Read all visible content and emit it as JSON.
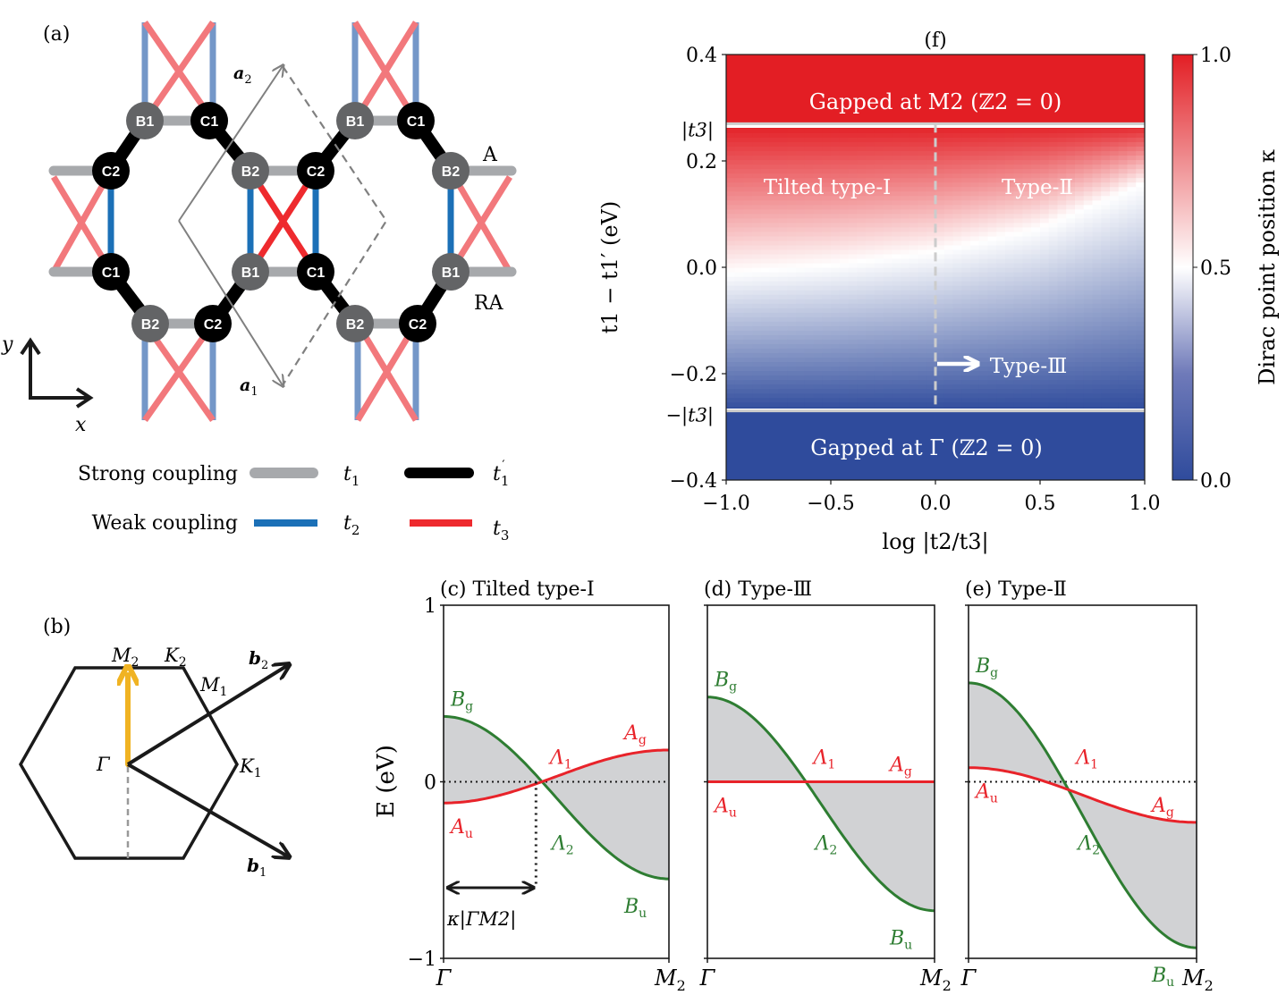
{
  "panel_a": {
    "label": "(a)",
    "nodes": [
      {
        "id": "B1",
        "type": "B"
      },
      {
        "id": "C1",
        "type": "C"
      },
      {
        "id": "C2",
        "type": "C"
      },
      {
        "id": "B2",
        "type": "B"
      }
    ],
    "edge_labels": {
      "A": "A",
      "RA": "RA"
    },
    "lattice_vectors": {
      "a1": "a",
      "a1_sub": "1",
      "a2": "a",
      "a2_sub": "2"
    },
    "axes": {
      "x": "x",
      "y": "y"
    },
    "legend": {
      "strong_label": "Strong coupling",
      "weak_label": "Weak coupling",
      "t1": "t",
      "t1_sub": "1",
      "t1p": "t",
      "t1p_sub": "1",
      "t1p_prime": "′",
      "t2": "t",
      "t2_sub": "2",
      "t3": "t",
      "t3_sub": "3"
    },
    "colors": {
      "t1": "#a7a9ac",
      "t1p": "#000000",
      "t2": "#1b70b7",
      "t3": "#ee2a2e",
      "t2_faded": "#7497c8",
      "t3_faded": "#f2787c",
      "node_B": "#636466",
      "node_C": "#000000"
    }
  },
  "panel_b": {
    "label": "(b)",
    "points": {
      "M2": "M",
      "M2_sub": "2",
      "K2": "K",
      "K2_sub": "2",
      "M1": "M",
      "M1_sub": "1",
      "K1": "K",
      "K1_sub": "1",
      "Gamma": "Γ"
    },
    "vectors": {
      "b1": "b",
      "b1_sub": "1",
      "b2": "b",
      "b2_sub": "2"
    },
    "colors": {
      "path": "#f0b323",
      "hex": "#1a1a1a"
    }
  },
  "chart_data": [
    {
      "id": "f",
      "type": "heatmap",
      "title": "(f)",
      "xlabel": "log |t2/t3|",
      "ylabel": "t1 − t1′ (eV)",
      "xlim": [
        -1.0,
        1.0
      ],
      "ylim": [
        -0.4,
        0.4
      ],
      "xticks": [
        "−1.0",
        "−0.5",
        "0.0",
        "0.5",
        "1.0"
      ],
      "xtick_values": [
        -1.0,
        -0.5,
        0.0,
        0.5,
        1.0
      ],
      "yticks": [
        "0.4",
        "0.2",
        "0.0",
        "−0.2",
        "−0.4"
      ],
      "ytick_values": [
        0.4,
        0.2,
        0.0,
        -0.2,
        -0.4
      ],
      "special_yticks": [
        {
          "label": "|t3|",
          "value": 0.27
        },
        {
          "label": "−|t3|",
          "value": -0.27
        }
      ],
      "t3_boundary": 0.27,
      "colorbar": {
        "label": "Dirac point position κ",
        "range": [
          0.0,
          1.0
        ],
        "ticks": [
          "1.0",
          "0.5",
          "0.0"
        ],
        "tick_values": [
          1.0,
          0.5,
          0.0
        ],
        "colormap": "bwr",
        "low": "#2f4b9c",
        "mid": "#ffffff",
        "high": "#e31e24"
      },
      "white_contour_kappa_0_5": {
        "x": [
          -1.0,
          -0.5,
          0.0,
          0.5,
          1.0
        ],
        "y": [
          -0.01,
          0.005,
          0.03,
          0.075,
          0.16
        ]
      },
      "annotations": [
        {
          "text": "Gapped at M2 (ℤ2 = 0)",
          "region": "top"
        },
        {
          "text": "Tilted type-I",
          "region": "upper-left"
        },
        {
          "text": "Type-Ⅱ",
          "region": "upper-right"
        },
        {
          "text": "Type-Ⅲ",
          "region": "x=0 line (arrow)"
        },
        {
          "text": "Gapped at Γ (ℤ2 = 0)",
          "region": "bottom"
        }
      ],
      "type3_line_x": 0.0,
      "grid": false
    },
    {
      "id": "c",
      "type": "line",
      "title": "(c)  Tilted type-I",
      "ylabel": "E (eV)",
      "ylim": [
        -1,
        1
      ],
      "yticks": [
        "1",
        "0",
        "−1"
      ],
      "ytick_values": [
        1,
        0,
        -1
      ],
      "xticks": [
        "Γ",
        "M2"
      ],
      "x_range": [
        0,
        1
      ],
      "series": [
        {
          "name": "green band (Bg → Λ2 → Bu)",
          "color": "#2e7d32",
          "start": 0.37,
          "end": -0.55,
          "shape": "cos"
        },
        {
          "name": "red band (Au → Λ1 → Ag)",
          "color": "#e8232a",
          "start": -0.12,
          "end": 0.18,
          "shape": "cos"
        }
      ],
      "labels": {
        "Bg": "B",
        "Bg_sub": "g",
        "Bu": "B",
        "Bu_sub": "u",
        "Ag": "A",
        "Ag_sub": "g",
        "Au": "A",
        "Au_sub": "u",
        "L1": "Λ",
        "L1_sub": "1",
        "L2": "Λ",
        "L2_sub": "2"
      },
      "kappa": 0.41,
      "kappa_label": "κ|ΓM2|",
      "fill_color": "#d1d2d4"
    },
    {
      "id": "d",
      "type": "line",
      "title": "(d)  Type-Ⅲ",
      "ylim": [
        -1,
        1
      ],
      "xticks": [
        "Γ",
        "M2"
      ],
      "x_range": [
        0,
        1
      ],
      "series": [
        {
          "name": "green band (Bg → Λ2 → Bu)",
          "color": "#2e7d32",
          "start": 0.48,
          "end": -0.73,
          "shape": "cos"
        },
        {
          "name": "red band (Au → Λ1 → Ag)",
          "color": "#e8232a",
          "start": 0.0,
          "end": 0.0,
          "shape": "flat"
        }
      ],
      "labels": {
        "Bg": "B",
        "Bg_sub": "g",
        "Bu": "B",
        "Bu_sub": "u",
        "Ag": "A",
        "Ag_sub": "g",
        "Au": "A",
        "Au_sub": "u",
        "L1": "Λ",
        "L1_sub": "1",
        "L2": "Λ",
        "L2_sub": "2"
      },
      "fill_color": "#d1d2d4"
    },
    {
      "id": "e",
      "type": "line",
      "title": "(e)  Type-Ⅱ",
      "ylim": [
        -1,
        1
      ],
      "xticks": [
        "Γ",
        "M2"
      ],
      "x_range": [
        0,
        1
      ],
      "series": [
        {
          "name": "green band (Bg → Λ2 → Bu)",
          "color": "#2e7d32",
          "start": 0.56,
          "end": -0.94,
          "shape": "cos"
        },
        {
          "name": "red band (Au → Λ1 → Ag)",
          "color": "#e8232a",
          "start": 0.08,
          "end": -0.23,
          "shape": "cos"
        }
      ],
      "labels": {
        "Bg": "B",
        "Bg_sub": "g",
        "Bu": "B",
        "Bu_sub": "u",
        "Ag": "A",
        "Ag_sub": "g",
        "Au": "A",
        "Au_sub": "u",
        "L1": "Λ",
        "L1_sub": "1",
        "L2": "Λ",
        "L2_sub": "2"
      },
      "fill_color": "#d1d2d4"
    }
  ]
}
